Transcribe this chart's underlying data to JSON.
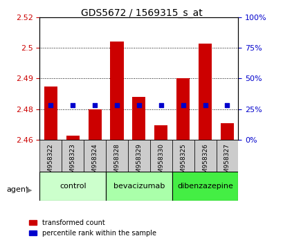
{
  "title": "GDS5672 / 1569315_s_at",
  "samples": [
    "GSM958322",
    "GSM958323",
    "GSM958324",
    "GSM958328",
    "GSM958329",
    "GSM958330",
    "GSM958325",
    "GSM958326",
    "GSM958327"
  ],
  "transformed_count": [
    2.486,
    2.462,
    2.475,
    2.508,
    2.481,
    2.467,
    2.49,
    2.507,
    2.468
  ],
  "percentile_values": [
    28,
    28,
    28,
    28,
    28,
    28,
    28,
    28,
    28
  ],
  "bar_bottom": 2.46,
  "ylim_left": [
    2.46,
    2.52
  ],
  "ylim_right": [
    0,
    100
  ],
  "yticks_left": [
    2.46,
    2.475,
    2.49,
    2.505,
    2.52
  ],
  "yticks_right": [
    0,
    25,
    50,
    75,
    100
  ],
  "groups": [
    {
      "label": "control",
      "indices": [
        0,
        1,
        2
      ],
      "color": "#ccffcc"
    },
    {
      "label": "bevacizumab",
      "indices": [
        3,
        4,
        5
      ],
      "color": "#aaffaa"
    },
    {
      "label": "dibenzazepine",
      "indices": [
        6,
        7,
        8
      ],
      "color": "#44ee44"
    }
  ],
  "bar_color": "#cc0000",
  "dot_color": "#0000cc",
  "bar_width": 0.6,
  "left_label_color": "#cc0000",
  "right_label_color": "#0000cc",
  "xlabel_agent": "agent",
  "legend_red": "transformed count",
  "legend_blue": "percentile rank within the sample"
}
